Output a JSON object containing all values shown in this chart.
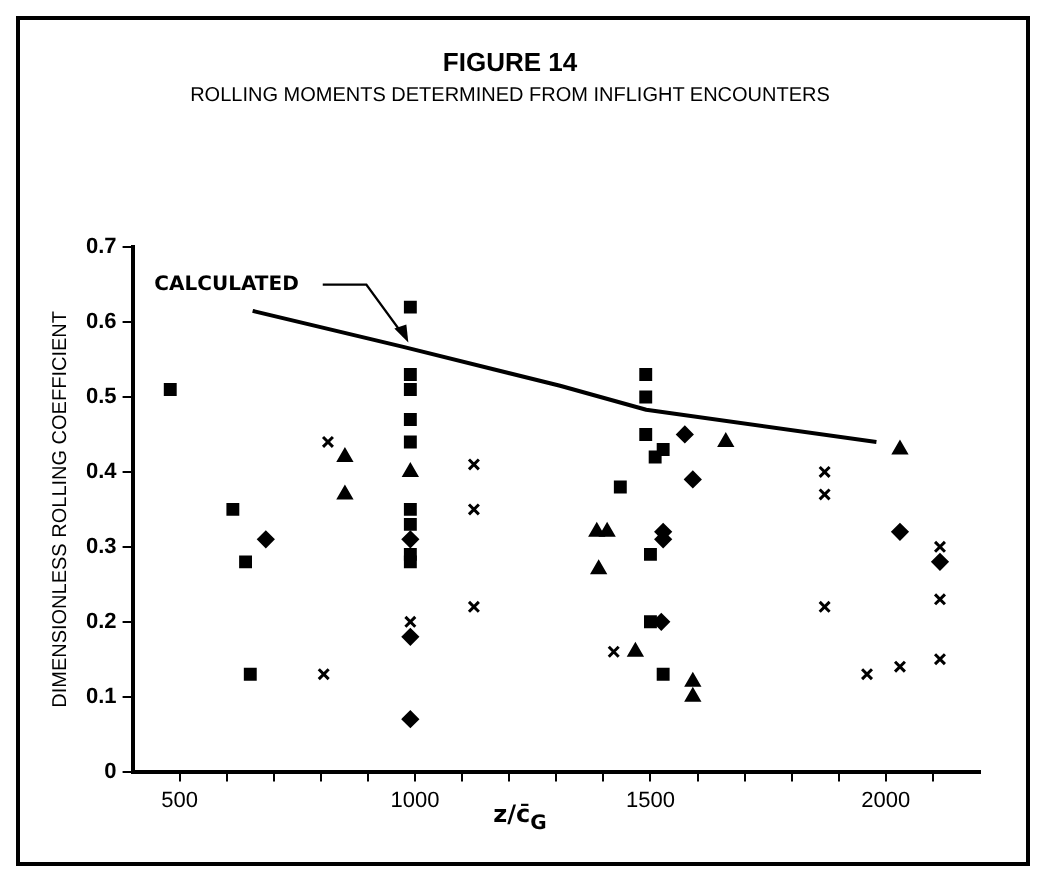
{
  "chart_data": {
    "type": "scatter",
    "title": "FIGURE 14",
    "subtitle": "ROLLING MOMENTS DETERMINED FROM INFLIGHT ENCOUNTERS",
    "xlabel": "z/c̄$_{G}$",
    "ylabel": "DIMENSIONLESS ROLLING COEFFICIENT",
    "xlim": [
      400,
      2200
    ],
    "xticks": [
      500,
      {
        "value": 600,
        "label": null
      },
      {
        "value": 700,
        "label": null
      },
      {
        "value": 800,
        "label": null
      },
      {
        "value": 900,
        "label": null
      },
      1000,
      {
        "value": 1100,
        "label": null
      },
      {
        "value": 1200,
        "label": null
      },
      {
        "value": 1300,
        "label": null
      },
      {
        "value": 1400,
        "label": null
      },
      1500,
      {
        "value": 1600,
        "label": null
      },
      {
        "value": 1700,
        "label": null
      },
      {
        "value": 1800,
        "label": null
      },
      {
        "value": 1900,
        "label": null
      },
      2000,
      {
        "value": 2100,
        "label": null
      }
    ],
    "ylim": [
      0,
      0.7
    ],
    "yticks": [
      0,
      0.1,
      0.2,
      0.3,
      0.4,
      0.5,
      0.6,
      0.7
    ],
    "grid": false,
    "legend": false,
    "annotations": [
      {
        "text": "CALCULATED",
        "x": 990,
        "y": 0.57
      }
    ],
    "series": [
      {
        "color": "#000000",
        "marker": "cross",
        "x": [
          1125,
          1125,
          806,
          1125,
          1422,
          2115,
          2115,
          2115,
          1870,
          815
        ],
        "values": [
          0.41,
          0.35,
          0.13,
          0.22,
          0.16,
          0.23,
          0.15,
          0.3,
          0.22,
          0.44
        ]
      },
      {
        "color": "#000000",
        "marker": "diamond",
        "x": [
          683,
          990,
          990,
          990,
          1573,
          1527,
          1527,
          1523,
          2115,
          2030,
          1590
        ],
        "values": [
          0.31,
          0.31,
          0.18,
          0.07,
          0.45,
          0.32,
          0.31,
          0.2,
          0.28,
          0.32,
          0.39
        ]
      },
      {
        "color": "#000000",
        "marker": "triangle",
        "x": [
          851,
          851,
          990,
          1660,
          2030,
          1386,
          1408,
          1390,
          1468,
          1590,
          1590
        ],
        "values": [
          0.42,
          0.37,
          0.4,
          0.44,
          0.43,
          0.32,
          0.32,
          0.27,
          0.16,
          0.12,
          0.1
        ]
      },
      {
        "color": "#000000",
        "marker": "cross",
        "x": [
          1870,
          1870,
          1960,
          2030,
          990
        ],
        "values": [
          0.4,
          0.37,
          0.13,
          0.14,
          0.2
        ]
      },
      {
        "color": "#000000",
        "marker": "square",
        "x": [
          480,
          613,
          640,
          650,
          990,
          990,
          990,
          990,
          990,
          990,
          990,
          990,
          990,
          1490,
          1490,
          1490,
          1527,
          1510,
          1436,
          1500,
          1500,
          1527
        ],
        "values": [
          0.51,
          0.35,
          0.28,
          0.13,
          0.62,
          0.53,
          0.51,
          0.47,
          0.44,
          0.35,
          0.33,
          0.29,
          0.28,
          0.53,
          0.5,
          0.45,
          0.43,
          0.42,
          0.38,
          0.29,
          0.2,
          0.13
        ]
      },
      {
        "type": "line",
        "color": "#000000",
        "marker": "none",
        "line_style": "solid",
        "x": [
          655,
          975,
          1308,
          1491,
          1980
        ],
        "values": [
          0.615,
          0.567,
          0.515,
          0.483,
          0.44
        ]
      }
    ]
  }
}
